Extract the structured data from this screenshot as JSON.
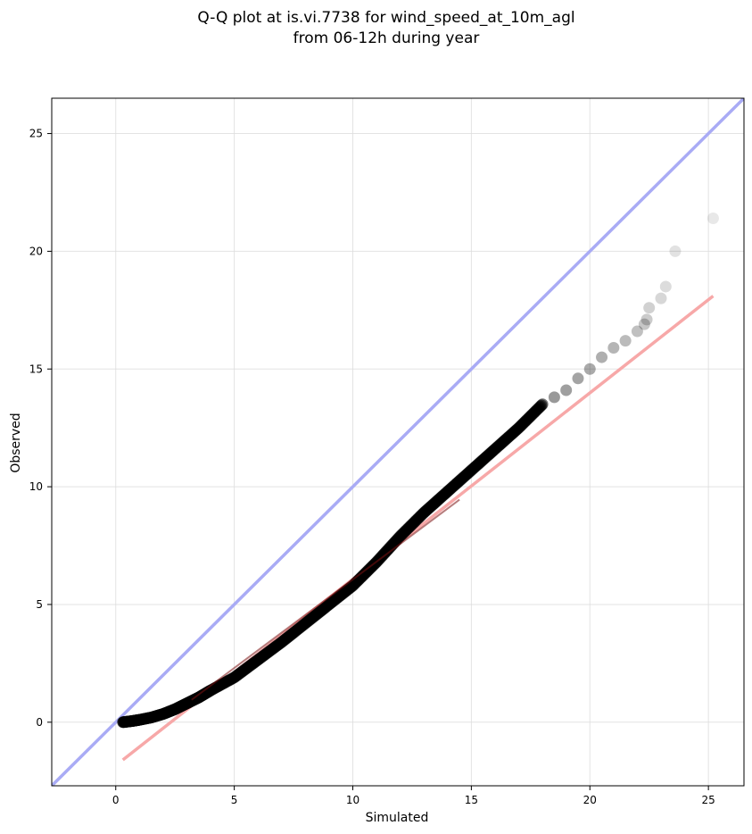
{
  "chart_data": {
    "type": "scatter",
    "title": "Q-Q plot at is.vi.7738 for wind_speed_at_10m_agl",
    "subtitle": "from 06-12h during year",
    "xlabel": "Simulated",
    "ylabel": "Observed",
    "xlim": [
      -2.7,
      26.5
    ],
    "ylim": [
      -2.7,
      26.5
    ],
    "xticks": [
      0,
      5,
      10,
      15,
      20,
      25
    ],
    "yticks": [
      0,
      5,
      10,
      15,
      20,
      25
    ],
    "grid": true,
    "legend": "none",
    "colors": {
      "points": "#000000",
      "identity_line": "#a9abf5",
      "fit_line": "#f7a8a8",
      "fit_line_overlap": "#7a1010"
    },
    "quantile_curve": {
      "x": [
        0.3,
        0.7,
        1.0,
        1.5,
        2.0,
        2.5,
        3.0,
        3.5,
        4.0,
        5.0,
        6.0,
        7.0,
        8.0,
        9.0,
        10.0,
        11.0,
        12.0,
        13.0,
        14.0,
        15.0,
        16.0,
        17.0,
        18.0
      ],
      "y": [
        0.0,
        0.05,
        0.1,
        0.2,
        0.35,
        0.55,
        0.8,
        1.05,
        1.35,
        1.9,
        2.65,
        3.4,
        4.2,
        5.0,
        5.8,
        6.8,
        7.9,
        8.9,
        9.8,
        10.7,
        11.6,
        12.5,
        13.5
      ]
    },
    "tail_points": {
      "x": [
        18.5,
        19.0,
        19.5,
        20.0,
        20.5,
        21.0,
        21.5,
        22.0,
        22.3,
        22.4,
        22.5,
        23.0,
        23.2,
        23.6,
        25.2
      ],
      "y": [
        13.8,
        14.1,
        14.6,
        15.0,
        15.5,
        15.9,
        16.2,
        16.6,
        16.9,
        17.1,
        17.6,
        18.0,
        18.5,
        20.0,
        21.4
      ]
    },
    "series": [
      {
        "type": "line",
        "values": [
          [
            -2.7,
            -2.7
          ],
          [
            26.5,
            26.5
          ]
        ]
      },
      {
        "type": "line",
        "values": [
          [
            0.3,
            -1.6
          ],
          [
            25.2,
            18.1
          ]
        ]
      }
    ]
  }
}
